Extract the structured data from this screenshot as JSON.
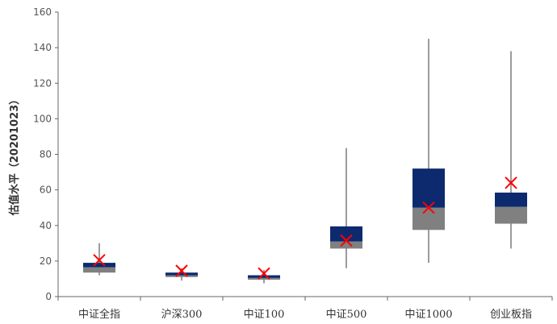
{
  "chart_data": {
    "type": "boxplot",
    "ylabel": "估值水平（20201023）",
    "ylim": [
      0,
      160
    ],
    "yticks": [
      0,
      20,
      40,
      60,
      80,
      100,
      120,
      140,
      160
    ],
    "grid": false,
    "legend": "none",
    "colors": {
      "upper_box": "#0d2a6e",
      "lower_box": "#808080",
      "whisker": "#595959",
      "marker": "#ff0000",
      "axis": "#666666"
    },
    "categories": [
      "中证全指",
      "沪深300",
      "中证100",
      "中证500",
      "中证1000",
      "创业板指"
    ],
    "boxes": [
      {
        "min": 12,
        "q1": 13.5,
        "median": 16.5,
        "q3": 19,
        "max": 30,
        "current": 20.5
      },
      {
        "min": 9,
        "q1": 11,
        "median": 12,
        "q3": 13.5,
        "max": 16,
        "current": 14.5
      },
      {
        "min": 7.5,
        "q1": 9.5,
        "median": 10.5,
        "q3": 12,
        "max": 15,
        "current": 13
      },
      {
        "min": 16,
        "q1": 27,
        "median": 31,
        "q3": 39.5,
        "max": 83.5,
        "current": 31.5
      },
      {
        "min": 19,
        "q1": 37.5,
        "median": 50,
        "q3": 72,
        "max": 145,
        "current": 50
      },
      {
        "min": 27,
        "q1": 41,
        "median": 50.5,
        "q3": 58.5,
        "max": 138,
        "current": 64
      }
    ]
  }
}
